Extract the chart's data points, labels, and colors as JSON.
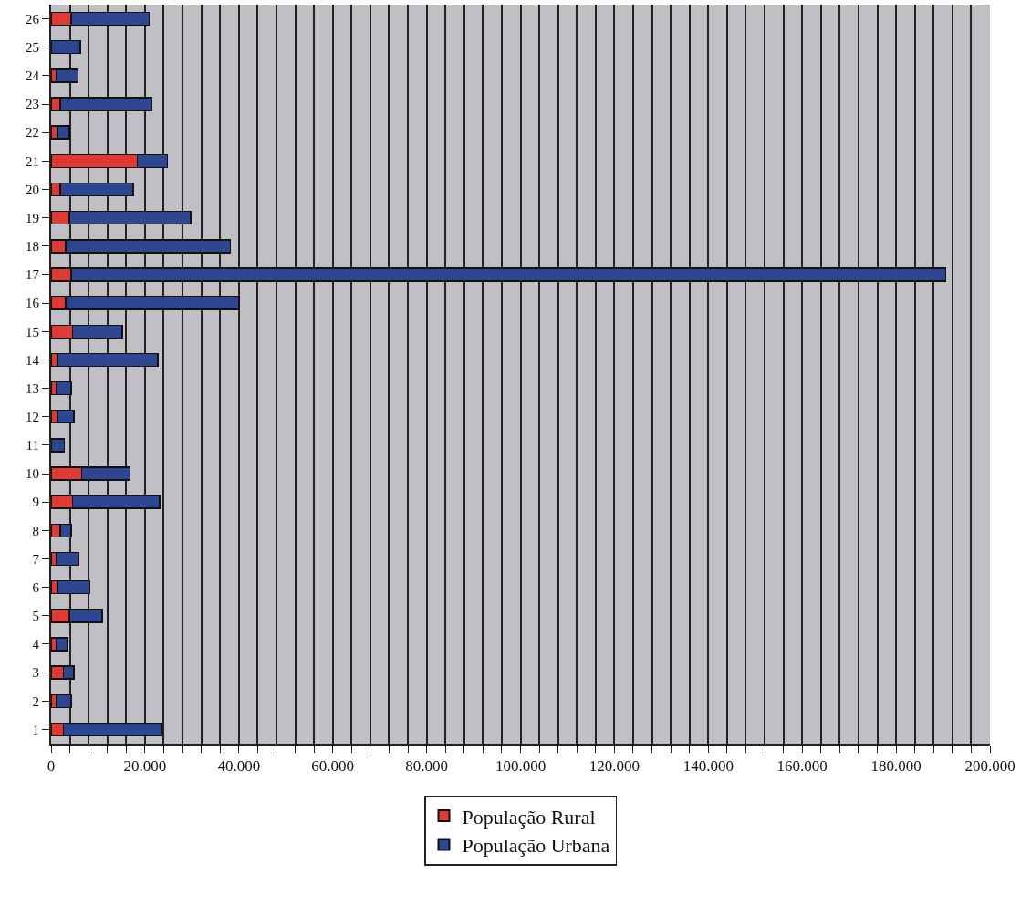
{
  "chart_data": {
    "type": "bar",
    "orientation": "horizontal",
    "stacked": true,
    "categories": [
      "26",
      "25",
      "24",
      "23",
      "22",
      "21",
      "20",
      "19",
      "18",
      "17",
      "16",
      "15",
      "14",
      "13",
      "12",
      "11",
      "10",
      "9",
      "8",
      "7",
      "6",
      "5",
      "4",
      "3",
      "2",
      "1"
    ],
    "series": [
      {
        "name": "População Rural",
        "color": "#e03a35",
        "values": [
          4300,
          null,
          1100,
          1900,
          1400,
          18400,
          1900,
          3900,
          3100,
          4300,
          3100,
          4600,
          1400,
          1100,
          1400,
          null,
          6500,
          4600,
          1900,
          1100,
          1400,
          3900,
          1100,
          2600,
          1100,
          2600
        ]
      },
      {
        "name": "População Urbana",
        "color": "#2e4591",
        "values": [
          16600,
          6200,
          4600,
          19600,
          2500,
          6400,
          15600,
          25800,
          35100,
          186300,
          36900,
          10600,
          21300,
          3200,
          3500,
          2800,
          10300,
          18500,
          2400,
          4700,
          6800,
          7000,
          2400,
          2300,
          3200,
          20900
        ]
      }
    ],
    "xlim": [
      0,
      200000
    ],
    "xticks": [
      0,
      {
        "value": 4000,
        "label": null
      },
      {
        "value": 8000,
        "label": null
      },
      {
        "value": 12000,
        "label": null
      },
      {
        "value": 16000,
        "label": null
      },
      {
        "value": 20000,
        "label": "20.000"
      },
      {
        "value": 24000,
        "label": null
      },
      {
        "value": 28000,
        "label": null
      },
      {
        "value": 32000,
        "label": null
      },
      {
        "value": 36000,
        "label": null
      },
      {
        "value": 40000,
        "label": "40.000"
      },
      {
        "value": 44000,
        "label": null
      },
      {
        "value": 48000,
        "label": null
      },
      {
        "value": 52000,
        "label": null
      },
      {
        "value": 56000,
        "label": null
      },
      {
        "value": 60000,
        "label": "60.000"
      },
      {
        "value": 64000,
        "label": null
      },
      {
        "value": 68000,
        "label": null
      },
      {
        "value": 72000,
        "label": null
      },
      {
        "value": 76000,
        "label": null
      },
      {
        "value": 80000,
        "label": "80.000"
      },
      {
        "value": 84000,
        "label": null
      },
      {
        "value": 88000,
        "label": null
      },
      {
        "value": 92000,
        "label": null
      },
      {
        "value": 96000,
        "label": null
      },
      {
        "value": 100000,
        "label": "100.000"
      },
      {
        "value": 104000,
        "label": null
      },
      {
        "value": 108000,
        "label": null
      },
      {
        "value": 112000,
        "label": null
      },
      {
        "value": 116000,
        "label": null
      },
      {
        "value": 120000,
        "label": "120.000"
      },
      {
        "value": 124000,
        "label": null
      },
      {
        "value": 128000,
        "label": null
      },
      {
        "value": 132000,
        "label": null
      },
      {
        "value": 136000,
        "label": null
      },
      {
        "value": 140000,
        "label": "140.000"
      },
      {
        "value": 144000,
        "label": null
      },
      {
        "value": 148000,
        "label": null
      },
      {
        "value": 152000,
        "label": null
      },
      {
        "value": 156000,
        "label": null
      },
      {
        "value": 160000,
        "label": "160.000"
      },
      {
        "value": 164000,
        "label": null
      },
      {
        "value": 168000,
        "label": null
      },
      {
        "value": 172000,
        "label": null
      },
      {
        "value": 176000,
        "label": null
      },
      {
        "value": 180000,
        "label": "180.000"
      },
      {
        "value": 184000,
        "label": null
      },
      {
        "value": 188000,
        "label": null
      },
      {
        "value": 192000,
        "label": null
      },
      {
        "value": 196000,
        "label": null
      },
      {
        "value": 200000,
        "label": "200.000"
      }
    ],
    "grid": "x",
    "legend": "bottom"
  }
}
